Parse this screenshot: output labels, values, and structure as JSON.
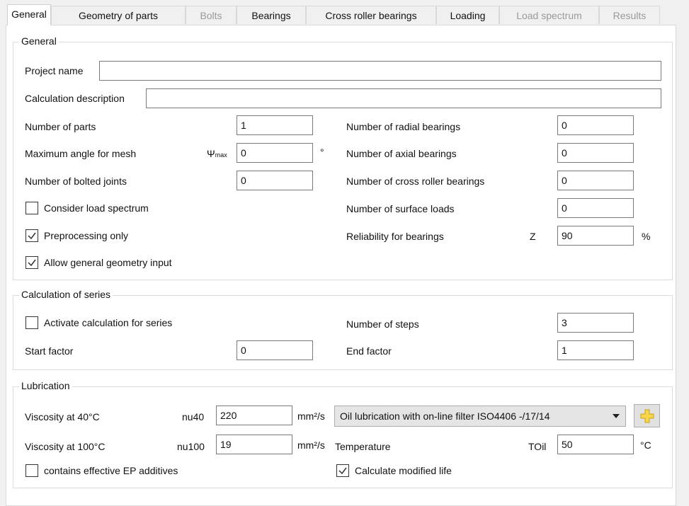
{
  "tabs": [
    {
      "label": "General",
      "state": "active"
    },
    {
      "label": "Geometry of parts",
      "state": "enabled"
    },
    {
      "label": "Bolts",
      "state": "disabled"
    },
    {
      "label": "Bearings",
      "state": "enabled"
    },
    {
      "label": "Cross roller bearings",
      "state": "enabled"
    },
    {
      "label": "Loading",
      "state": "enabled"
    },
    {
      "label": "Load spectrum",
      "state": "disabled"
    },
    {
      "label": "Results",
      "state": "disabled"
    }
  ],
  "general": {
    "title": "General",
    "project_name": {
      "label": "Project name",
      "value": ""
    },
    "calc_description": {
      "label": "Calculation description",
      "value": ""
    },
    "num_parts": {
      "label": "Number of parts",
      "value": "1"
    },
    "max_angle": {
      "label": "Maximum angle for mesh",
      "symbol": "Ψ",
      "symbol_sub": "max",
      "value": "0",
      "unit": "°"
    },
    "num_bolted": {
      "label": "Number of bolted joints",
      "value": "0"
    },
    "consider_load_spectrum": {
      "label": "Consider load spectrum",
      "checked": false
    },
    "preprocessing_only": {
      "label": "Preprocessing only",
      "checked": true
    },
    "allow_general_geometry": {
      "label": "Allow general geometry input",
      "checked": true
    },
    "num_radial": {
      "label": "Number of radial bearings",
      "value": "0"
    },
    "num_axial": {
      "label": "Number of axial bearings",
      "value": "0"
    },
    "num_cross": {
      "label": "Number of cross roller bearings",
      "value": "0"
    },
    "num_surface": {
      "label": "Number of surface loads",
      "value": "0"
    },
    "reliability": {
      "label": "Reliability for bearings",
      "symbol": "Z",
      "value": "90",
      "unit": "%"
    }
  },
  "series": {
    "title": "Calculation of series",
    "activate": {
      "label": "Activate calculation for series",
      "checked": false
    },
    "start_factor": {
      "label": "Start factor",
      "value": "0"
    },
    "num_steps": {
      "label": "Number of steps",
      "value": "3"
    },
    "end_factor": {
      "label": "End factor",
      "value": "1"
    }
  },
  "lubrication": {
    "title": "Lubrication",
    "visc40": {
      "label": "Viscosity at 40°C",
      "symbol": "nu40",
      "value": "220",
      "unit": "mm²/s"
    },
    "visc100": {
      "label": "Viscosity at 100°C",
      "symbol": "nu100",
      "value": "19",
      "unit": "mm²/s"
    },
    "ep_additives": {
      "label": "contains effective EP additives",
      "checked": false
    },
    "lubrication_type": {
      "selected": "Oil lubrication with on-line filter ISO4406 -/17/14"
    },
    "temperature": {
      "label": "Temperature",
      "symbol": "TOil",
      "value": "50",
      "unit": "°C"
    },
    "modified_life": {
      "label": "Calculate modified life",
      "checked": true
    }
  }
}
